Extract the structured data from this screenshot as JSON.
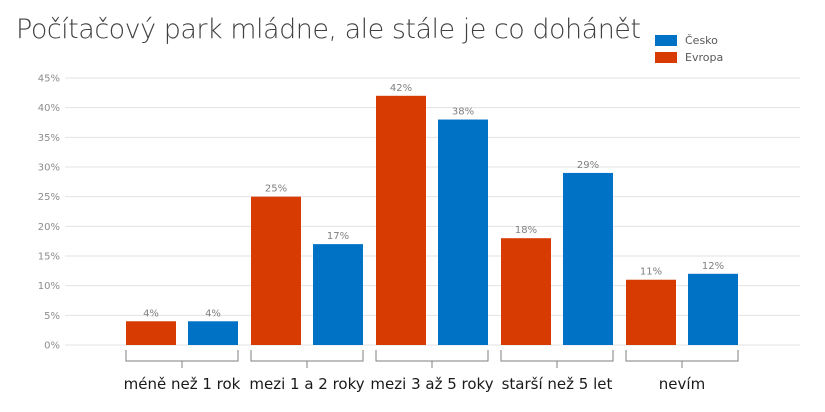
{
  "chart_data": {
    "type": "bar",
    "title": "Počítačový park mládne, ale stále je co dohánět",
    "categories": [
      "méně než 1 rok",
      "mezi 1 a 2 roky",
      "mezi 3 až 5 roky",
      "starší než 5 let",
      "nevím"
    ],
    "series": [
      {
        "name": "Evropa",
        "color": "#d83b01",
        "values": [
          4,
          25,
          42,
          18,
          11
        ]
      },
      {
        "name": "Česko",
        "color": "#0072c6",
        "values": [
          4,
          17,
          38,
          29,
          12
        ]
      }
    ],
    "yticks": [
      "0%",
      "5%",
      "10%",
      "15%",
      "20%",
      "25%",
      "30%",
      "35%",
      "40%",
      "45%"
    ],
    "ylim": [
      0,
      45
    ],
    "grid": true,
    "legend": "top-right",
    "xlabel": "",
    "ylabel": ""
  }
}
